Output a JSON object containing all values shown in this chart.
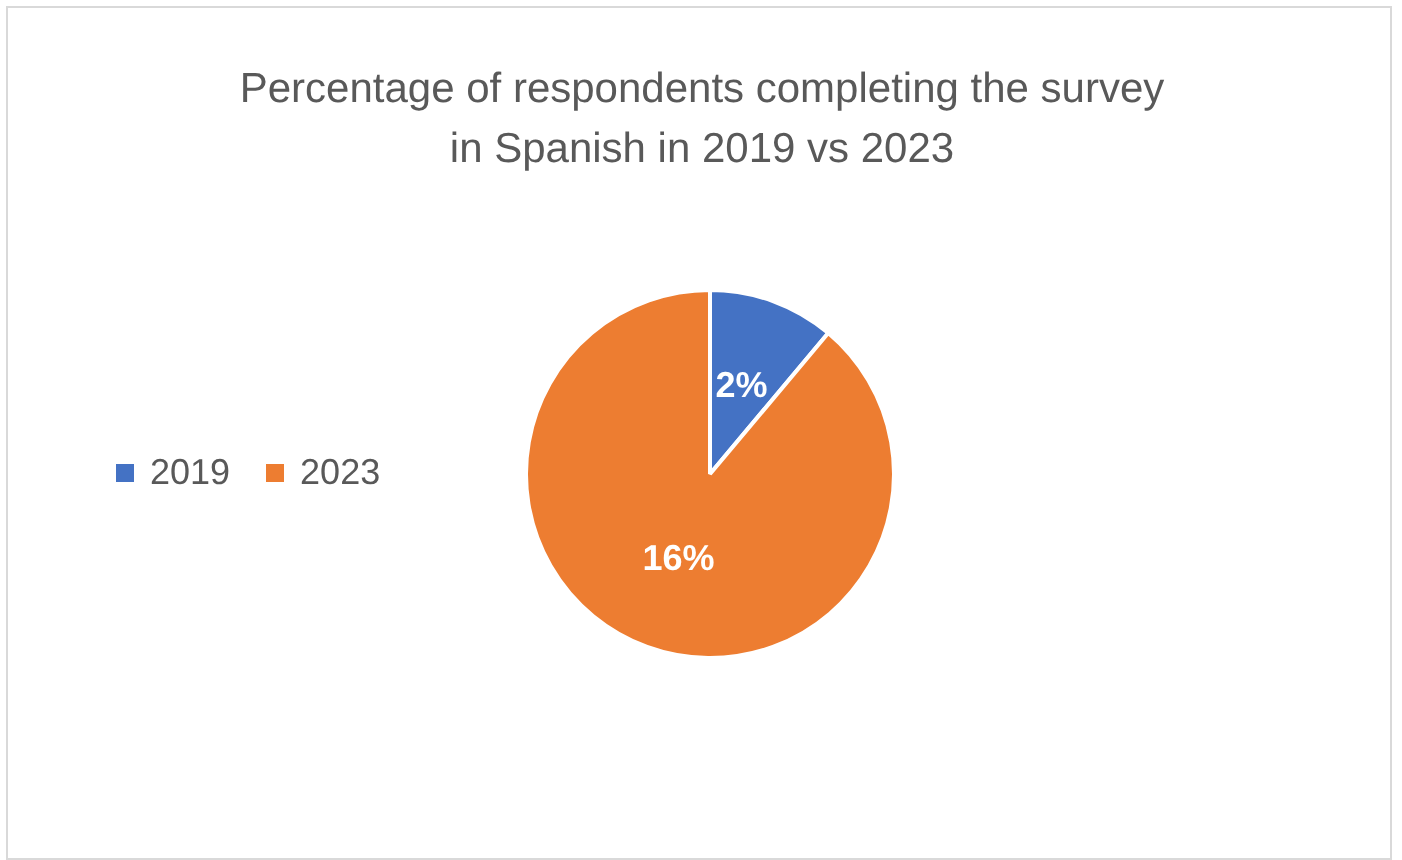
{
  "chart_data": {
    "type": "pie",
    "title": "Percentage of respondents completing the survey in Spanish in 2019 vs 2023",
    "categories": [
      "2019",
      "2023"
    ],
    "values": [
      2,
      16
    ],
    "colors": [
      "#4472c4",
      "#ed7d31"
    ],
    "value_labels": [
      "2%",
      "16%"
    ],
    "legend": "left"
  }
}
